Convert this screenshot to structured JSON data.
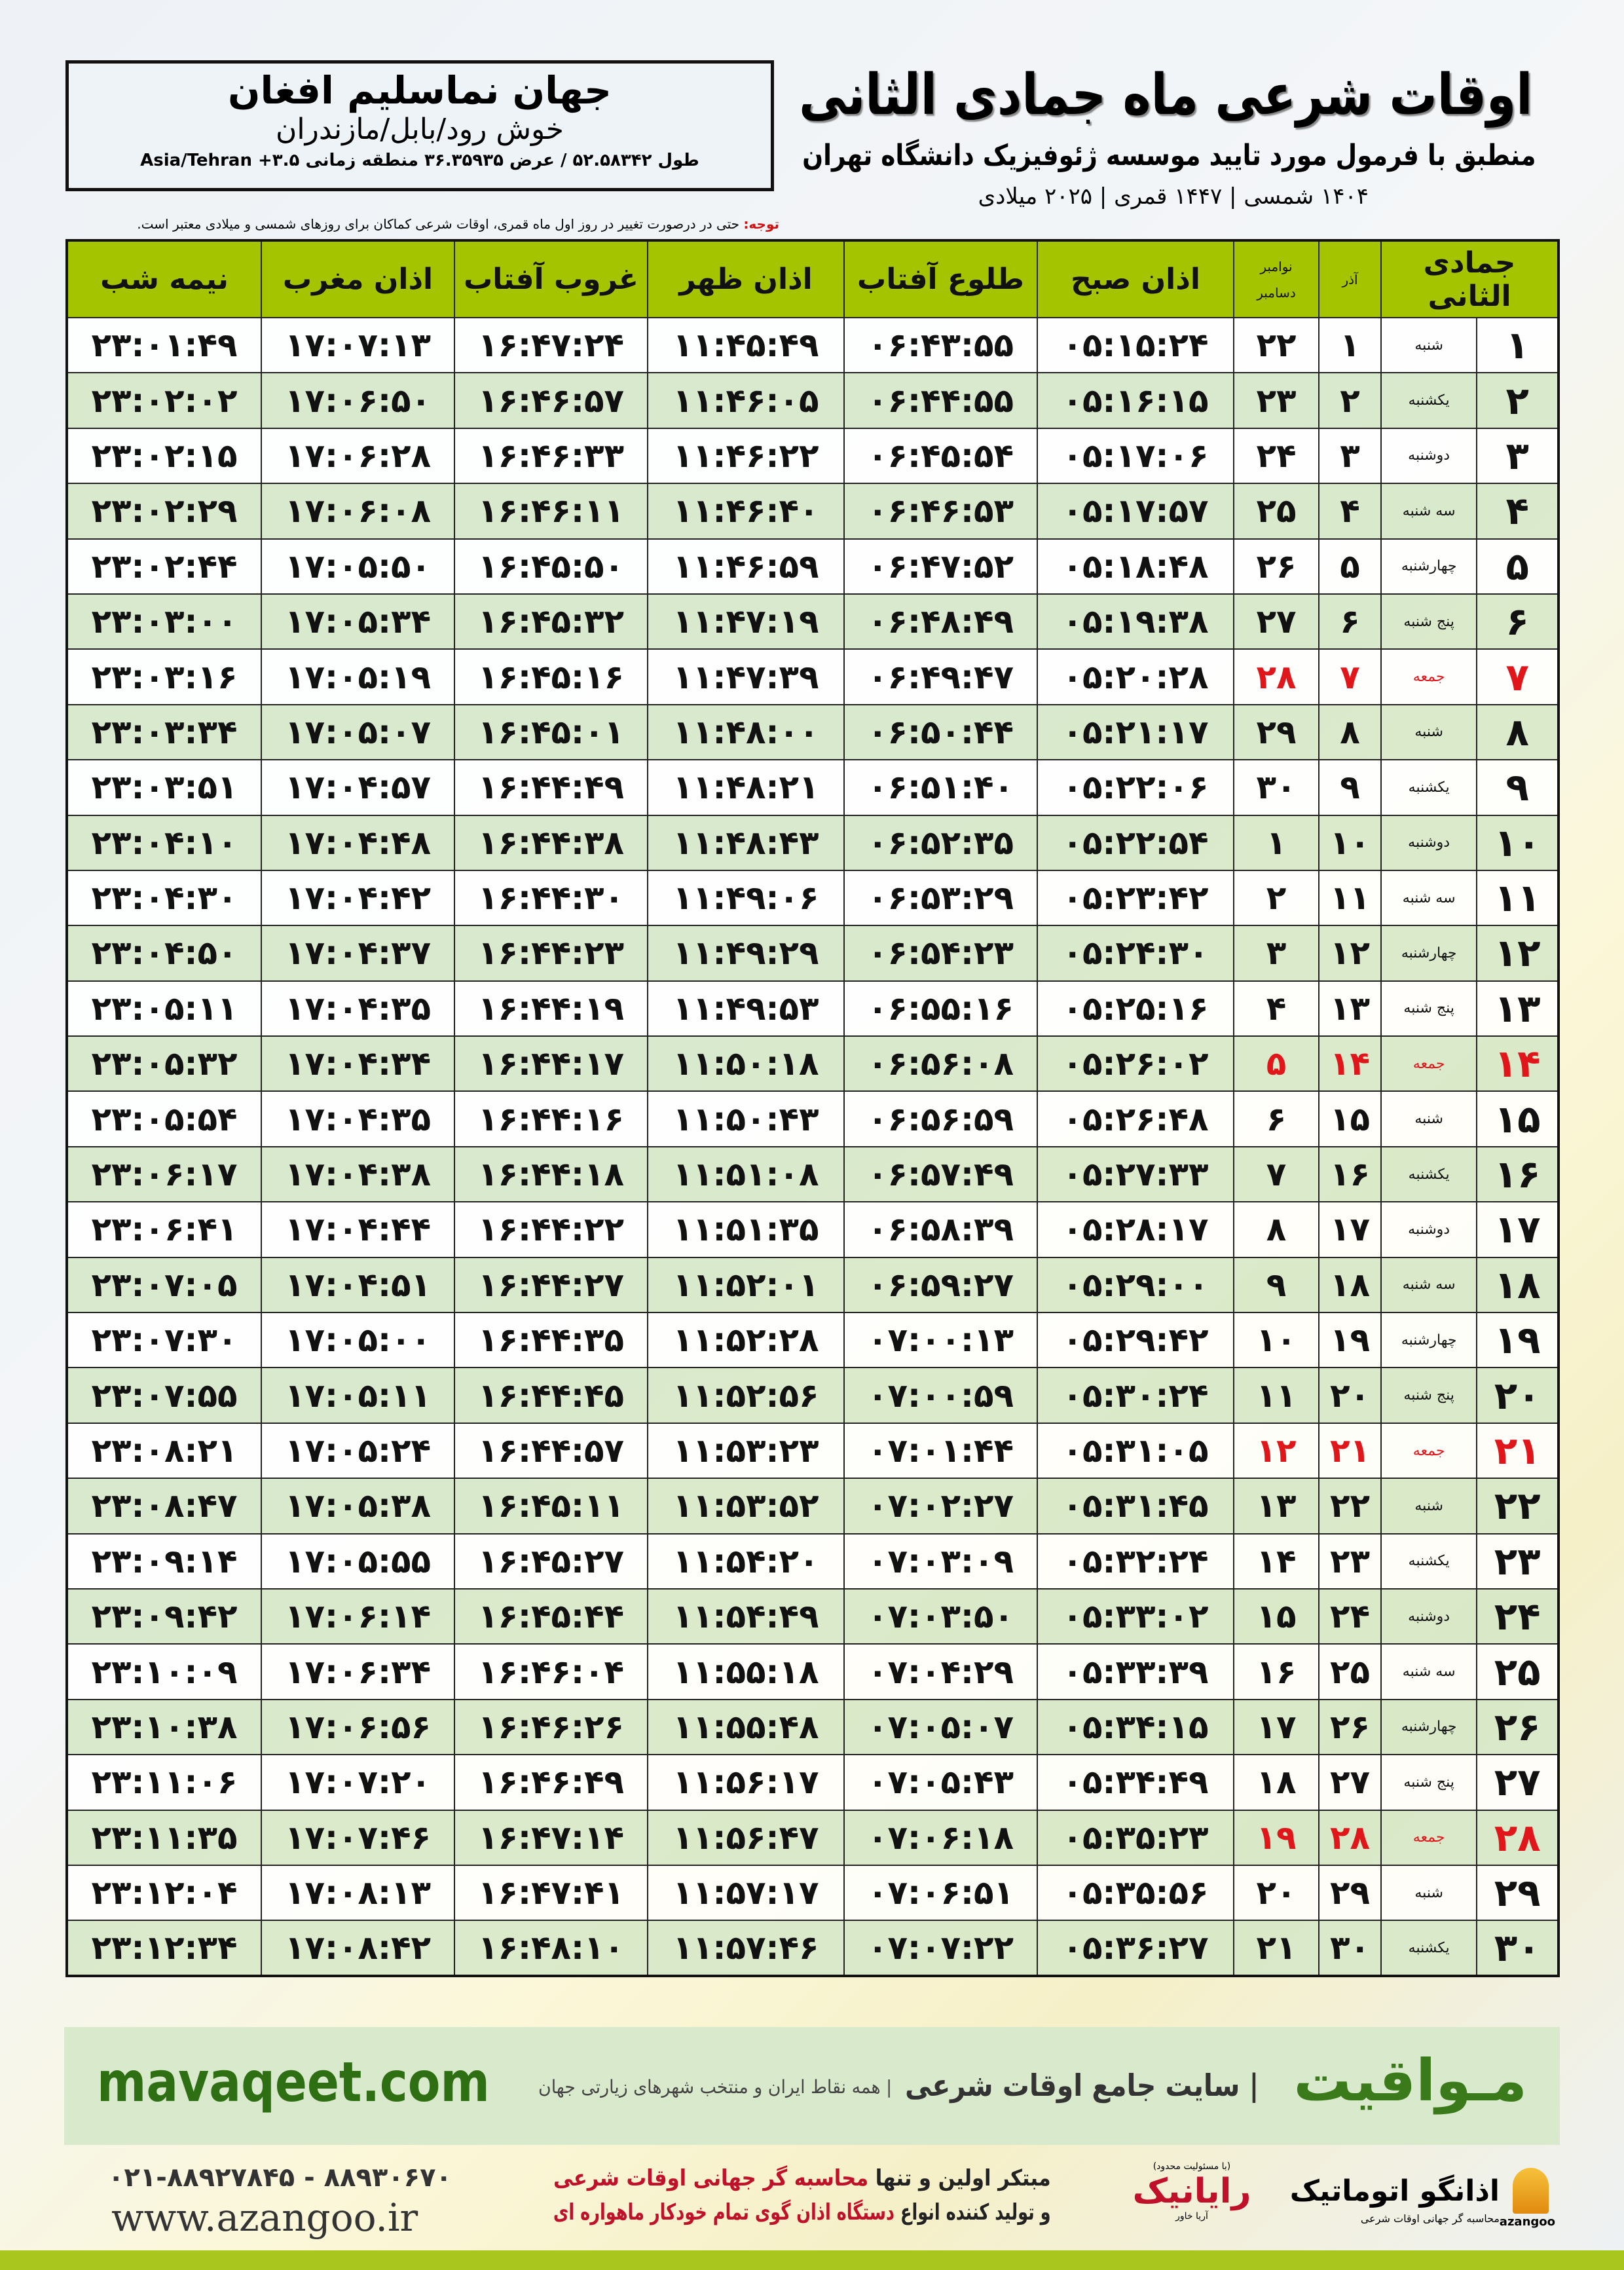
{
  "info": {
    "place": "جهان نماسلیم افغان",
    "region": "خوش رود/بابل/مازندران",
    "coords": "طول ۵۲.۵۸۳۴۲ / عرض ۳۶.۳۵۹۳۵ منطقه زمانی Asia/Tehran +۳.۵"
  },
  "title": "اوقات شرعی ماه جمادی الثانی",
  "subtitle": "منطبق با فرمول مورد تایید موسسه ژئوفیزیک دانشگاه تهران",
  "dateline": "۱۴۰۴ شمسی | ۱۴۴۷ قمری | ۲۰۲۵ میلادی",
  "note": {
    "label": "توجه:",
    "text": "حتی در درصورت تغییر در روز اول ماه قمری، اوقات شرعی کماکان برای روزهای شمسی و میلادی معتبر است."
  },
  "table": {
    "headers": {
      "hijri": "جمادی الثانی",
      "azar": "آذر",
      "greg1": "نوامبر",
      "greg2": "دسامبر",
      "fajr": "اذان صبح",
      "sunrise": "طلوع آفتاب",
      "dhuhr": "اذان ظهر",
      "sunset": "غروب آفتاب",
      "maghrib": "اذان مغرب",
      "midnight": "نیمه شب"
    },
    "friday_color": "#e0161b",
    "header_color": "#a5c400",
    "rows": [
      [
        "۱",
        "شنبه",
        "۱",
        "۲۲",
        "۰۵:۱۵:۲۴",
        "۰۶:۴۳:۵۵",
        "۱۱:۴۵:۴۹",
        "۱۶:۴۷:۲۴",
        "۱۷:۰۷:۱۳",
        "۲۳:۰۱:۴۹"
      ],
      [
        "۲",
        "یکشنبه",
        "۲",
        "۲۳",
        "۰۵:۱۶:۱۵",
        "۰۶:۴۴:۵۵",
        "۱۱:۴۶:۰۵",
        "۱۶:۴۶:۵۷",
        "۱۷:۰۶:۵۰",
        "۲۳:۰۲:۰۲"
      ],
      [
        "۳",
        "دوشنبه",
        "۳",
        "۲۴",
        "۰۵:۱۷:۰۶",
        "۰۶:۴۵:۵۴",
        "۱۱:۴۶:۲۲",
        "۱۶:۴۶:۳۳",
        "۱۷:۰۶:۲۸",
        "۲۳:۰۲:۱۵"
      ],
      [
        "۴",
        "سه شنبه",
        "۴",
        "۲۵",
        "۰۵:۱۷:۵۷",
        "۰۶:۴۶:۵۳",
        "۱۱:۴۶:۴۰",
        "۱۶:۴۶:۱۱",
        "۱۷:۰۶:۰۸",
        "۲۳:۰۲:۲۹"
      ],
      [
        "۵",
        "چهارشنبه",
        "۵",
        "۲۶",
        "۰۵:۱۸:۴۸",
        "۰۶:۴۷:۵۲",
        "۱۱:۴۶:۵۹",
        "۱۶:۴۵:۵۰",
        "۱۷:۰۵:۵۰",
        "۲۳:۰۲:۴۴"
      ],
      [
        "۶",
        "پنج شنبه",
        "۶",
        "۲۷",
        "۰۵:۱۹:۳۸",
        "۰۶:۴۸:۴۹",
        "۱۱:۴۷:۱۹",
        "۱۶:۴۵:۳۲",
        "۱۷:۰۵:۳۴",
        "۲۳:۰۳:۰۰"
      ],
      [
        "۷",
        "جمعه",
        "۷",
        "۲۸",
        "۰۵:۲۰:۲۸",
        "۰۶:۴۹:۴۷",
        "۱۱:۴۷:۳۹",
        "۱۶:۴۵:۱۶",
        "۱۷:۰۵:۱۹",
        "۲۳:۰۳:۱۶"
      ],
      [
        "۸",
        "شنبه",
        "۸",
        "۲۹",
        "۰۵:۲۱:۱۷",
        "۰۶:۵۰:۴۴",
        "۱۱:۴۸:۰۰",
        "۱۶:۴۵:۰۱",
        "۱۷:۰۵:۰۷",
        "۲۳:۰۳:۳۴"
      ],
      [
        "۹",
        "یکشنبه",
        "۹",
        "۳۰",
        "۰۵:۲۲:۰۶",
        "۰۶:۵۱:۴۰",
        "۱۱:۴۸:۲۱",
        "۱۶:۴۴:۴۹",
        "۱۷:۰۴:۵۷",
        "۲۳:۰۳:۵۱"
      ],
      [
        "۱۰",
        "دوشنبه",
        "۱۰",
        "۱",
        "۰۵:۲۲:۵۴",
        "۰۶:۵۲:۳۵",
        "۱۱:۴۸:۴۳",
        "۱۶:۴۴:۳۸",
        "۱۷:۰۴:۴۸",
        "۲۳:۰۴:۱۰"
      ],
      [
        "۱۱",
        "سه شنبه",
        "۱۱",
        "۲",
        "۰۵:۲۳:۴۲",
        "۰۶:۵۳:۲۹",
        "۱۱:۴۹:۰۶",
        "۱۶:۴۴:۳۰",
        "۱۷:۰۴:۴۲",
        "۲۳:۰۴:۳۰"
      ],
      [
        "۱۲",
        "چهارشنبه",
        "۱۲",
        "۳",
        "۰۵:۲۴:۳۰",
        "۰۶:۵۴:۲۳",
        "۱۱:۴۹:۲۹",
        "۱۶:۴۴:۲۳",
        "۱۷:۰۴:۳۷",
        "۲۳:۰۴:۵۰"
      ],
      [
        "۱۳",
        "پنج شنبه",
        "۱۳",
        "۴",
        "۰۵:۲۵:۱۶",
        "۰۶:۵۵:۱۶",
        "۱۱:۴۹:۵۳",
        "۱۶:۴۴:۱۹",
        "۱۷:۰۴:۳۵",
        "۲۳:۰۵:۱۱"
      ],
      [
        "۱۴",
        "جمعه",
        "۱۴",
        "۵",
        "۰۵:۲۶:۰۲",
        "۰۶:۵۶:۰۸",
        "۱۱:۵۰:۱۸",
        "۱۶:۴۴:۱۷",
        "۱۷:۰۴:۳۴",
        "۲۳:۰۵:۳۲"
      ],
      [
        "۱۵",
        "شنبه",
        "۱۵",
        "۶",
        "۰۵:۲۶:۴۸",
        "۰۶:۵۶:۵۹",
        "۱۱:۵۰:۴۳",
        "۱۶:۴۴:۱۶",
        "۱۷:۰۴:۳۵",
        "۲۳:۰۵:۵۴"
      ],
      [
        "۱۶",
        "یکشنبه",
        "۱۶",
        "۷",
        "۰۵:۲۷:۳۳",
        "۰۶:۵۷:۴۹",
        "۱۱:۵۱:۰۸",
        "۱۶:۴۴:۱۸",
        "۱۷:۰۴:۳۸",
        "۲۳:۰۶:۱۷"
      ],
      [
        "۱۷",
        "دوشنبه",
        "۱۷",
        "۸",
        "۰۵:۲۸:۱۷",
        "۰۶:۵۸:۳۹",
        "۱۱:۵۱:۳۵",
        "۱۶:۴۴:۲۲",
        "۱۷:۰۴:۴۴",
        "۲۳:۰۶:۴۱"
      ],
      [
        "۱۸",
        "سه شنبه",
        "۱۸",
        "۹",
        "۰۵:۲۹:۰۰",
        "۰۶:۵۹:۲۷",
        "۱۱:۵۲:۰۱",
        "۱۶:۴۴:۲۷",
        "۱۷:۰۴:۵۱",
        "۲۳:۰۷:۰۵"
      ],
      [
        "۱۹",
        "چهارشنبه",
        "۱۹",
        "۱۰",
        "۰۵:۲۹:۴۲",
        "۰۷:۰۰:۱۳",
        "۱۱:۵۲:۲۸",
        "۱۶:۴۴:۳۵",
        "۱۷:۰۵:۰۰",
        "۲۳:۰۷:۳۰"
      ],
      [
        "۲۰",
        "پنج شنبه",
        "۲۰",
        "۱۱",
        "۰۵:۳۰:۲۴",
        "۰۷:۰۰:۵۹",
        "۱۱:۵۲:۵۶",
        "۱۶:۴۴:۴۵",
        "۱۷:۰۵:۱۱",
        "۲۳:۰۷:۵۵"
      ],
      [
        "۲۱",
        "جمعه",
        "۲۱",
        "۱۲",
        "۰۵:۳۱:۰۵",
        "۰۷:۰۱:۴۴",
        "۱۱:۵۳:۲۳",
        "۱۶:۴۴:۵۷",
        "۱۷:۰۵:۲۴",
        "۲۳:۰۸:۲۱"
      ],
      [
        "۲۲",
        "شنبه",
        "۲۲",
        "۱۳",
        "۰۵:۳۱:۴۵",
        "۰۷:۰۲:۲۷",
        "۱۱:۵۳:۵۲",
        "۱۶:۴۵:۱۱",
        "۱۷:۰۵:۳۸",
        "۲۳:۰۸:۴۷"
      ],
      [
        "۲۳",
        "یکشنبه",
        "۲۳",
        "۱۴",
        "۰۵:۳۲:۲۴",
        "۰۷:۰۳:۰۹",
        "۱۱:۵۴:۲۰",
        "۱۶:۴۵:۲۷",
        "۱۷:۰۵:۵۵",
        "۲۳:۰۹:۱۴"
      ],
      [
        "۲۴",
        "دوشنبه",
        "۲۴",
        "۱۵",
        "۰۵:۳۳:۰۲",
        "۰۷:۰۳:۵۰",
        "۱۱:۵۴:۴۹",
        "۱۶:۴۵:۴۴",
        "۱۷:۰۶:۱۴",
        "۲۳:۰۹:۴۲"
      ],
      [
        "۲۵",
        "سه شنبه",
        "۲۵",
        "۱۶",
        "۰۵:۳۳:۳۹",
        "۰۷:۰۴:۲۹",
        "۱۱:۵۵:۱۸",
        "۱۶:۴۶:۰۴",
        "۱۷:۰۶:۳۴",
        "۲۳:۱۰:۰۹"
      ],
      [
        "۲۶",
        "چهارشنبه",
        "۲۶",
        "۱۷",
        "۰۵:۳۴:۱۵",
        "۰۷:۰۵:۰۷",
        "۱۱:۵۵:۴۸",
        "۱۶:۴۶:۲۶",
        "۱۷:۰۶:۵۶",
        "۲۳:۱۰:۳۸"
      ],
      [
        "۲۷",
        "پنج شنبه",
        "۲۷",
        "۱۸",
        "۰۵:۳۴:۴۹",
        "۰۷:۰۵:۴۳",
        "۱۱:۵۶:۱۷",
        "۱۶:۴۶:۴۹",
        "۱۷:۰۷:۲۰",
        "۲۳:۱۱:۰۶"
      ],
      [
        "۲۸",
        "جمعه",
        "۲۸",
        "۱۹",
        "۰۵:۳۵:۲۳",
        "۰۷:۰۶:۱۸",
        "۱۱:۵۶:۴۷",
        "۱۶:۴۷:۱۴",
        "۱۷:۰۷:۴۶",
        "۲۳:۱۱:۳۵"
      ],
      [
        "۲۹",
        "شنبه",
        "۲۹",
        "۲۰",
        "۰۵:۳۵:۵۶",
        "۰۷:۰۶:۵۱",
        "۱۱:۵۷:۱۷",
        "۱۶:۴۷:۴۱",
        "۱۷:۰۸:۱۳",
        "۲۳:۱۲:۰۴"
      ],
      [
        "۳۰",
        "یکشنبه",
        "۳۰",
        "۲۱",
        "۰۵:۳۶:۲۷",
        "۰۷:۰۷:۲۲",
        "۱۱:۵۷:۴۶",
        "۱۶:۴۸:۱۰",
        "۱۷:۰۸:۴۲",
        "۲۳:۱۲:۳۴"
      ]
    ]
  },
  "banner": {
    "brand": "مـواقیت",
    "tagline": "| سایت جامع اوقات شرعی",
    "sub": "| همه نقاط ایران و منتخب شهرهای زیارتی جهان",
    "url": "mavaqeet.com"
  },
  "footer": {
    "phone": "۰۲۱-۸۸۹۲۷۸۴۵ - ۸۸۹۳۰۶۷۰",
    "www": "www.azangoo.ir",
    "promo1a": "مبتکر اولین و تنها ",
    "promo1b": "محاسبه گر جهانی اوقات شرعی",
    "promo2a": "و تولید کننده انواع ",
    "promo2b": "دستگاه اذان گوی تمام خودکار ماهواره ای",
    "logo2_note": "(با مسئولیت محدود)",
    "logo2_name": "رایانیک",
    "logo2_sub": "آریا خاور",
    "logo1_name": "اذانگو اتوماتیک",
    "logo1_sub": "محاسبه گر جهانی اوقات شرعی",
    "logo1_latin": "azangoo"
  }
}
